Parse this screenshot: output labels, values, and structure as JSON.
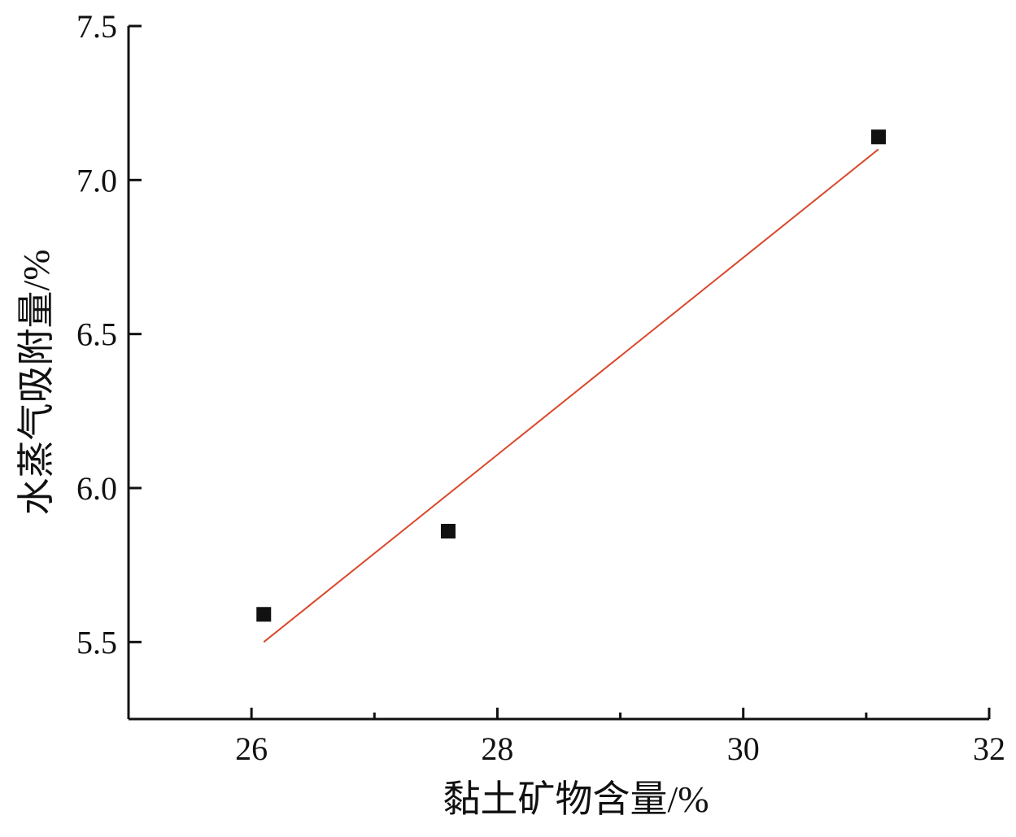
{
  "chart_data": {
    "type": "scatter",
    "x_label": "黏土矿物含量/%",
    "y_label": "水蒸气吸附量/%",
    "xlim": [
      25,
      32
    ],
    "xticks": [
      26,
      28,
      30,
      32
    ],
    "xminorticks": [
      27,
      29,
      31
    ],
    "ylim": [
      5.25,
      7.5
    ],
    "yticks": [
      {
        "value": 5.5,
        "label": "5.5"
      },
      {
        "value": 6,
        "label": "6.0"
      },
      {
        "value": 6.5,
        "label": "6.5"
      },
      {
        "value": 7,
        "label": "7.0"
      },
      {
        "value": 7.5,
        "label": "7.5"
      }
    ],
    "series": [
      {
        "type": "scatter",
        "color": "#111111",
        "x": [
          26.1,
          27.6,
          31.1
        ],
        "values": [
          5.59,
          5.86,
          7.14
        ]
      },
      {
        "type": "line",
        "color": "#d9482b",
        "x": [
          26.1,
          31.1
        ],
        "values": [
          5.5,
          7.1
        ]
      }
    ]
  }
}
